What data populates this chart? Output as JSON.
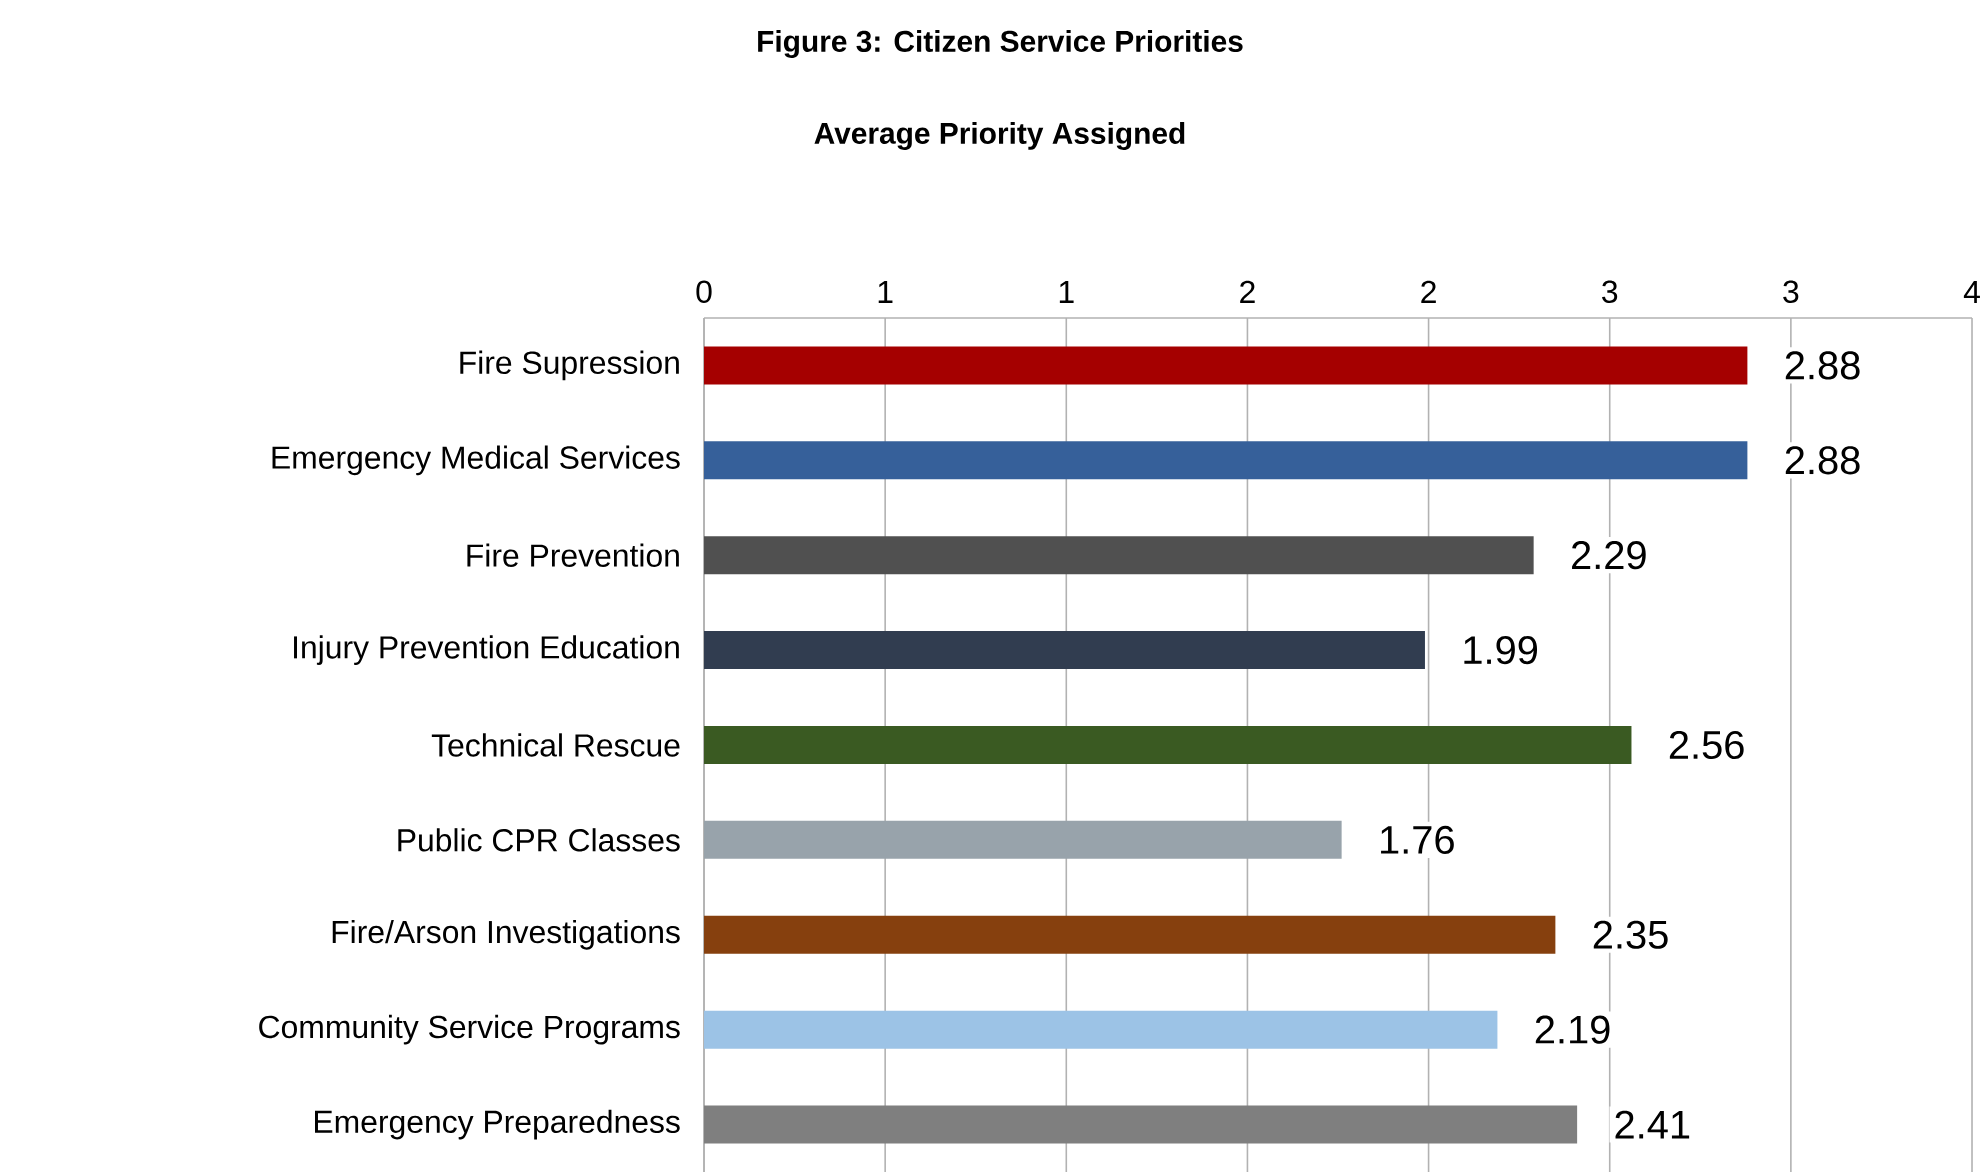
{
  "chart_data": {
    "type": "bar",
    "orientation": "horizontal",
    "title": "Figure 3: Citizen Service Priorities",
    "subtitle": "Average Priority Assigned",
    "categories": [
      "Fire Supression",
      "Emergency Medical Services",
      "Fire Prevention",
      "Injury Prevention Education",
      "Technical Rescue",
      "Public CPR Classes",
      "Fire/Arson Investigations",
      "Community Service Programs",
      "Emergency Preparedness"
    ],
    "values": [
      2.88,
      2.88,
      2.29,
      1.99,
      2.56,
      1.76,
      2.35,
      2.19,
      2.41
    ],
    "colors": [
      "#a50000",
      "#36609a",
      "#505050",
      "#313d50",
      "#3a5a22",
      "#98a3ab",
      "#86400e",
      "#9cc3e6",
      "#7f7f7f"
    ],
    "xlim": [
      0,
      3.5
    ],
    "xticks": [
      0,
      {
        "value": 0.5,
        "label": "1"
      },
      1,
      {
        "value": 1.5,
        "label": "2"
      },
      2,
      {
        "value": 2.5,
        "label": "3"
      },
      3,
      {
        "value": 3.5,
        "label": "4"
      }
    ],
    "grid": "x",
    "data_labels": true
  }
}
